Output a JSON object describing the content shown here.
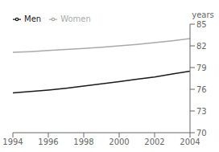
{
  "chart_data": {
    "type": "line",
    "y_label": "years",
    "x": [
      1994,
      1995,
      1996,
      1997,
      1998,
      1999,
      2000,
      2001,
      2002,
      2003,
      2004
    ],
    "series": [
      {
        "name": "Men",
        "color": "#1a1a1a",
        "values": [
          75.5,
          75.7,
          75.9,
          76.15,
          76.45,
          76.75,
          77.05,
          77.4,
          77.7,
          78.1,
          78.5
        ]
      },
      {
        "name": "Women",
        "color": "#aaaaaa",
        "values": [
          81.1,
          81.2,
          81.35,
          81.5,
          81.65,
          81.8,
          82.0,
          82.2,
          82.45,
          82.7,
          83.0
        ]
      }
    ],
    "xlim": [
      1994,
      2004
    ],
    "xticks": [
      1994,
      1996,
      1998,
      2000,
      2002,
      2004
    ],
    "ylim": [
      70,
      85
    ],
    "yticks": [
      70,
      73,
      76,
      79,
      82,
      85
    ],
    "grid": false,
    "legend": "upper left"
  }
}
